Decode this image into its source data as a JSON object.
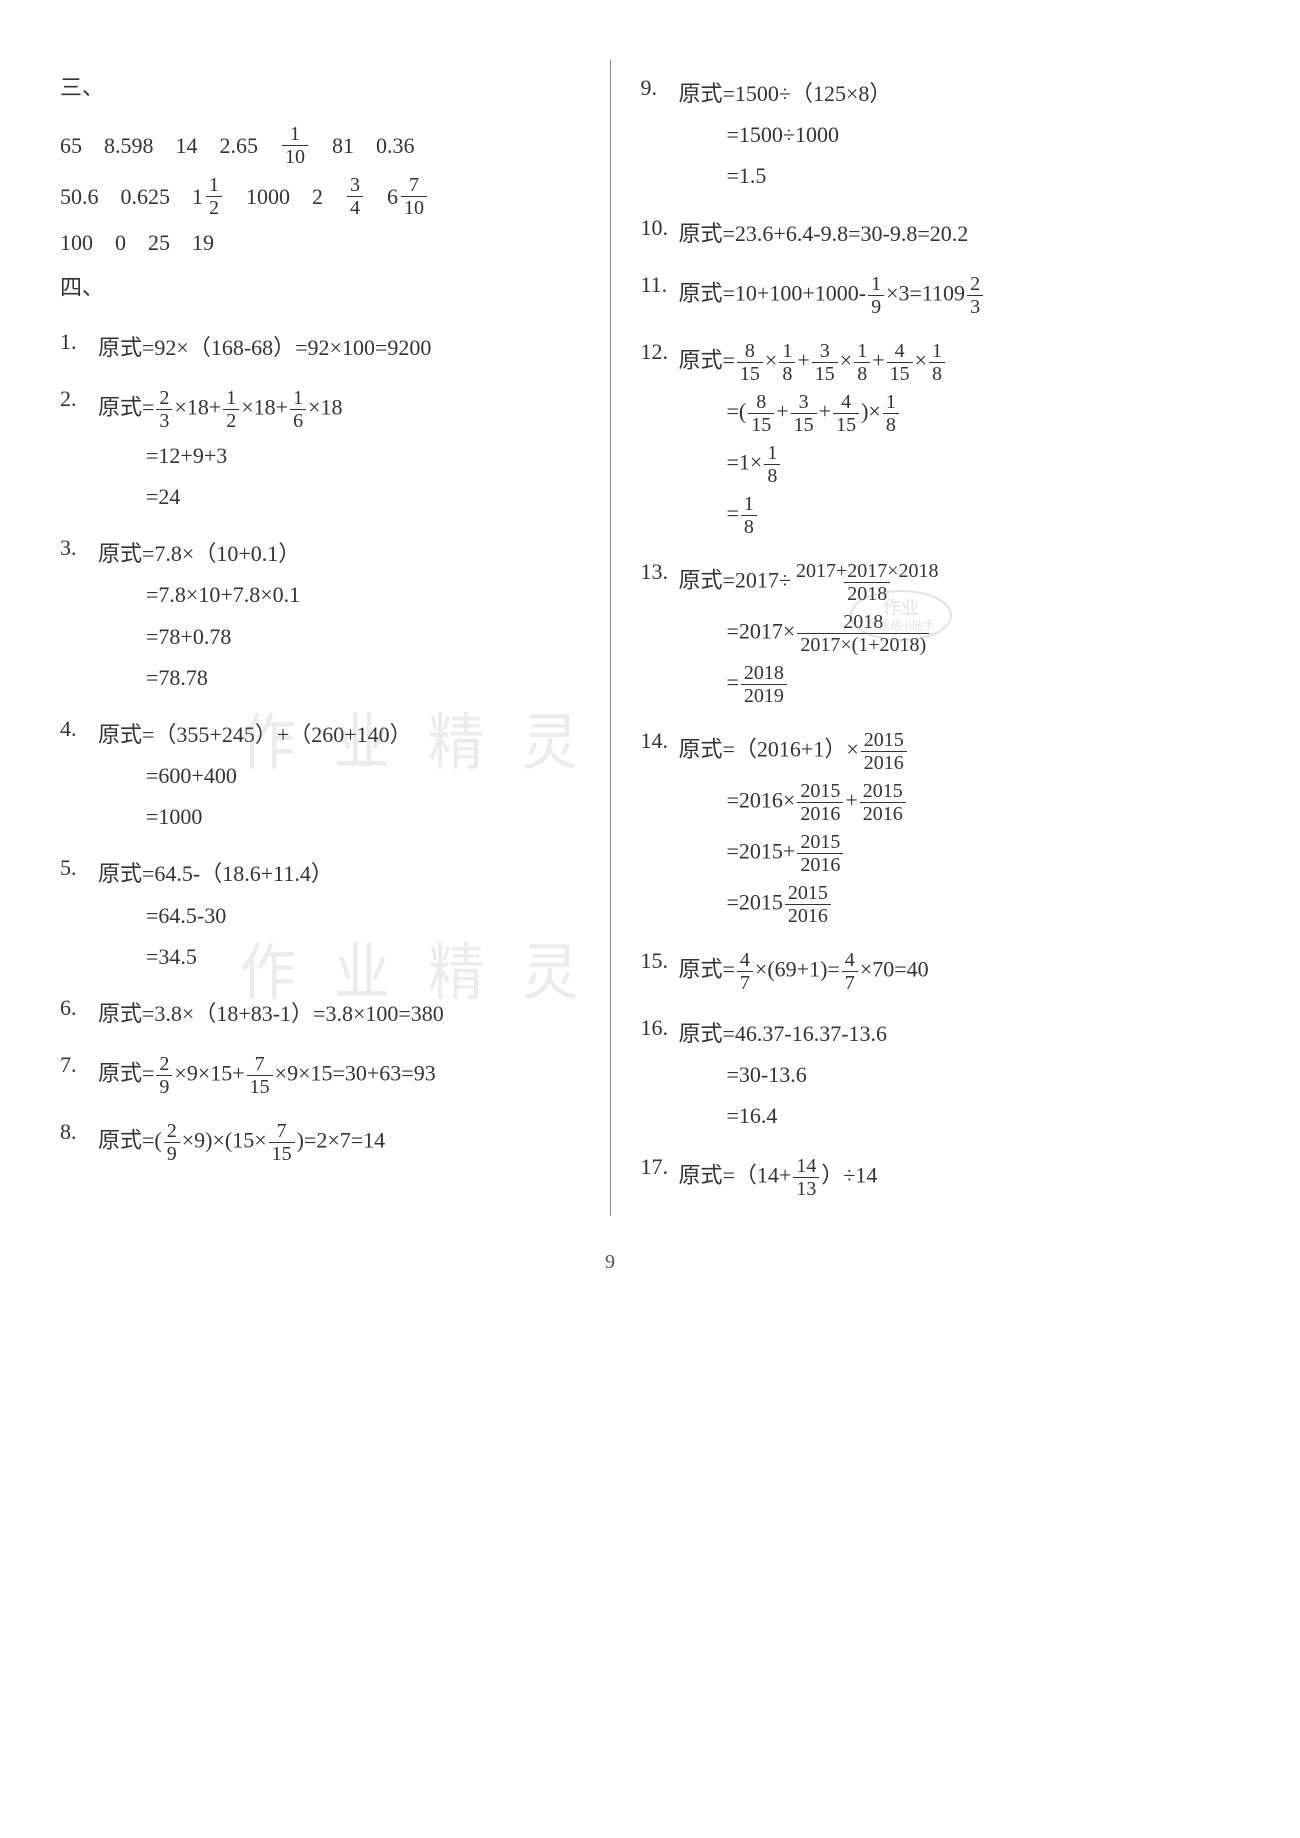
{
  "page_number": "9",
  "watermarks": {
    "wm1": "作 业 精 灵",
    "wm2": "作 业 精 灵",
    "stamp_top": "作业",
    "stamp_bottom": "作业帮小助手"
  },
  "section3": {
    "heading": "三、",
    "row1": [
      "65",
      "8.598",
      "14",
      "2.65",
      {
        "frac": [
          "1",
          "10"
        ]
      },
      "81",
      "0.36"
    ],
    "row2": [
      "50.6",
      "0.625",
      {
        "mix": [
          "1",
          "1",
          "2"
        ]
      },
      "1000",
      "2",
      {
        "frac": [
          "3",
          "4"
        ]
      },
      {
        "mix": [
          "6",
          "7",
          "10"
        ]
      }
    ],
    "row3": [
      "100",
      "0",
      "25",
      "19"
    ]
  },
  "section4": {
    "heading": "四、",
    "left": [
      {
        "n": "1.",
        "steps": [
          {
            "pre": "原式=92×（168-68）=92×100=9200"
          }
        ]
      },
      {
        "n": "2.",
        "steps": [
          {
            "tokens": [
              "原式=",
              {
                "frac": [
                  "2",
                  "3"
                ]
              },
              "×18+",
              {
                "frac": [
                  "1",
                  "2"
                ]
              },
              "×18+",
              {
                "frac": [
                  "1",
                  "6"
                ]
              },
              "×18"
            ]
          },
          {
            "indent": true,
            "pre": "=12+9+3"
          },
          {
            "indent": true,
            "pre": "=24"
          }
        ]
      },
      {
        "n": "3.",
        "steps": [
          {
            "pre": "原式=7.8×（10+0.1）"
          },
          {
            "indent": true,
            "pre": "=7.8×10+7.8×0.1"
          },
          {
            "indent": true,
            "pre": "=78+0.78"
          },
          {
            "indent": true,
            "pre": "=78.78"
          }
        ]
      },
      {
        "n": "4.",
        "steps": [
          {
            "pre": "原式=（355+245）+（260+140）"
          },
          {
            "indent": true,
            "pre": "=600+400"
          },
          {
            "indent": true,
            "pre": "=1000"
          }
        ]
      },
      {
        "n": "5.",
        "steps": [
          {
            "pre": "原式=64.5-（18.6+11.4）"
          },
          {
            "indent": true,
            "pre": "=64.5-30"
          },
          {
            "indent": true,
            "pre": "=34.5"
          }
        ]
      },
      {
        "n": "6.",
        "steps": [
          {
            "pre": "原式=3.8×（18+83-1）=3.8×100=380"
          }
        ]
      },
      {
        "n": "7.",
        "steps": [
          {
            "tokens": [
              "原式=",
              {
                "frac": [
                  "2",
                  "9"
                ]
              },
              "×9×15+",
              {
                "frac": [
                  "7",
                  "15"
                ]
              },
              "×9×15=30+63=93"
            ]
          }
        ]
      },
      {
        "n": "8.",
        "steps": [
          {
            "tokens": [
              "原式=(",
              {
                "frac": [
                  "2",
                  "9"
                ]
              },
              "×9)×(15×",
              {
                "frac": [
                  "7",
                  "15"
                ]
              },
              ")=2×7=14"
            ]
          }
        ]
      }
    ],
    "right": [
      {
        "n": "9.",
        "steps": [
          {
            "pre": "原式=1500÷（125×8）"
          },
          {
            "indent": true,
            "pre": "=1500÷1000"
          },
          {
            "indent": true,
            "pre": "=1.5"
          }
        ]
      },
      {
        "n": "10.",
        "steps": [
          {
            "pre": "原式=23.6+6.4-9.8=30-9.8=20.2"
          }
        ]
      },
      {
        "n": "11.",
        "steps": [
          {
            "tokens": [
              "原式=10+100+1000-",
              {
                "frac": [
                  "1",
                  "9"
                ]
              },
              "×3=1109",
              {
                "frac": [
                  "2",
                  "3"
                ]
              }
            ]
          }
        ]
      },
      {
        "n": "12.",
        "steps": [
          {
            "tokens": [
              "原式=",
              {
                "frac": [
                  "8",
                  "15"
                ]
              },
              "×",
              {
                "frac": [
                  "1",
                  "8"
                ]
              },
              "+",
              {
                "frac": [
                  "3",
                  "15"
                ]
              },
              "×",
              {
                "frac": [
                  "1",
                  "8"
                ]
              },
              "+",
              {
                "frac": [
                  "4",
                  "15"
                ]
              },
              "×",
              {
                "frac": [
                  "1",
                  "8"
                ]
              }
            ]
          },
          {
            "indent": true,
            "tokens": [
              "=(",
              {
                "frac": [
                  "8",
                  "15"
                ]
              },
              "+",
              {
                "frac": [
                  "3",
                  "15"
                ]
              },
              "+",
              {
                "frac": [
                  "4",
                  "15"
                ]
              },
              ")×",
              {
                "frac": [
                  "1",
                  "8"
                ]
              }
            ]
          },
          {
            "indent": true,
            "tokens": [
              "=1×",
              {
                "frac": [
                  "1",
                  "8"
                ]
              }
            ]
          },
          {
            "indent": true,
            "tokens": [
              "=",
              {
                "frac": [
                  "1",
                  "8"
                ]
              }
            ]
          }
        ]
      },
      {
        "n": "13.",
        "steps": [
          {
            "tokens": [
              "原式=2017÷",
              {
                "frac": [
                  "2017+2017×2018",
                  "2018"
                ]
              }
            ]
          },
          {
            "indent": true,
            "tokens": [
              "=2017×",
              {
                "frac": [
                  "2018",
                  "2017×(1+2018)"
                ]
              }
            ]
          },
          {
            "indent": true,
            "tokens": [
              "=",
              {
                "frac": [
                  "2018",
                  "2019"
                ]
              }
            ]
          }
        ]
      },
      {
        "n": "14.",
        "steps": [
          {
            "tokens": [
              "原式=（2016+1）×",
              {
                "frac": [
                  "2015",
                  "2016"
                ]
              }
            ]
          },
          {
            "indent": true,
            "tokens": [
              "=2016×",
              {
                "frac": [
                  "2015",
                  "2016"
                ]
              },
              "+",
              {
                "frac": [
                  "2015",
                  "2016"
                ]
              }
            ]
          },
          {
            "indent": true,
            "tokens": [
              "=2015+",
              {
                "frac": [
                  "2015",
                  "2016"
                ]
              }
            ]
          },
          {
            "indent": true,
            "tokens": [
              "=2015",
              {
                "frac": [
                  "2015",
                  "2016"
                ]
              }
            ]
          }
        ]
      },
      {
        "n": "15.",
        "steps": [
          {
            "tokens": [
              "原式=",
              {
                "frac": [
                  "4",
                  "7"
                ]
              },
              "×(69+1)=",
              {
                "frac": [
                  "4",
                  "7"
                ]
              },
              "×70=40"
            ]
          }
        ]
      },
      {
        "n": "16.",
        "steps": [
          {
            "pre": "原式=46.37-16.37-13.6"
          },
          {
            "indent": true,
            "pre": "=30-13.6"
          },
          {
            "indent": true,
            "pre": "=16.4"
          }
        ]
      },
      {
        "n": "17.",
        "steps": [
          {
            "tokens": [
              "原式=（14+",
              {
                "frac": [
                  "14",
                  "13"
                ]
              },
              "）÷14"
            ]
          }
        ]
      }
    ]
  }
}
